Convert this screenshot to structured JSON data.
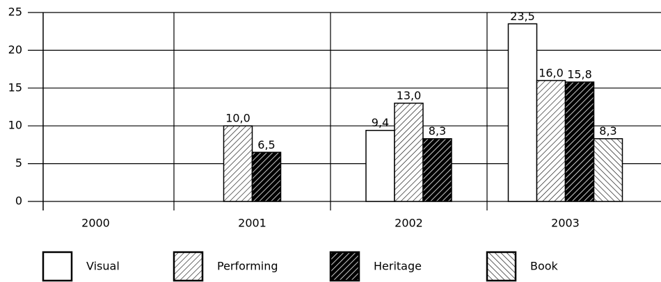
{
  "chart_data": {
    "type": "bar",
    "categories": [
      "2000",
      "2001",
      "2002",
      "2003"
    ],
    "series": [
      {
        "name": "Visual",
        "values": [
          null,
          null,
          9.4,
          23.5
        ],
        "value_labels": [
          null,
          null,
          "9,4",
          "23,5"
        ]
      },
      {
        "name": "Performing",
        "values": [
          null,
          10.0,
          13.0,
          16.0
        ],
        "value_labels": [
          null,
          "10,0",
          "13,0",
          "16,0"
        ]
      },
      {
        "name": "Heritage",
        "values": [
          null,
          6.5,
          8.3,
          15.8
        ],
        "value_labels": [
          null,
          "6,5",
          "8,3",
          "15,8"
        ]
      },
      {
        "name": "Book",
        "values": [
          null,
          null,
          null,
          8.3
        ],
        "value_labels": [
          null,
          null,
          null,
          "8,3"
        ]
      }
    ],
    "ylim": [
      0,
      25
    ],
    "yticks": [
      0,
      5,
      10,
      15,
      20,
      25
    ],
    "grid": true,
    "legend": "bottom"
  }
}
